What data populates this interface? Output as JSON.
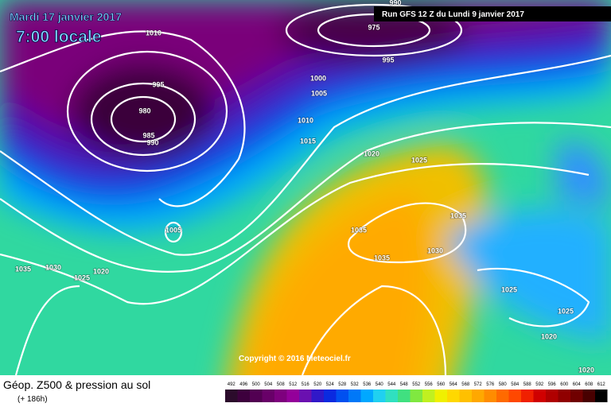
{
  "header": {
    "date": "Mardi 17 janvier 2017",
    "time": "7:00 locale",
    "run": "Run GFS 12 Z du Lundi 9 janvier 2017"
  },
  "isobar_labels": [
    "990",
    "975",
    "1010",
    "995",
    "1000",
    "1005",
    "995",
    "980",
    "985",
    "990",
    "1010",
    "1015",
    "1020",
    "1025",
    "1035",
    "1005",
    "1035",
    "1035",
    "1030",
    "1035",
    "1030",
    "1025",
    "1020",
    "1025",
    "1025",
    "1020",
    "1020"
  ],
  "copyright": "Copyright © 2016 Meteociel.fr",
  "footer": {
    "title": "Géop. Z500 & pression au sol",
    "lead": "(+ 186h)"
  },
  "scale": {
    "values": [
      492,
      496,
      500,
      504,
      508,
      512,
      516,
      520,
      524,
      528,
      532,
      536,
      540,
      544,
      548,
      552,
      556,
      560,
      564,
      568,
      572,
      576,
      580,
      584,
      588,
      592,
      596,
      600,
      604,
      608,
      612
    ],
    "colors": [
      "#2b0b2b",
      "#3d003d",
      "#520052",
      "#680068",
      "#7e007e",
      "#94009a",
      "#6a10b0",
      "#3018c8",
      "#0a2ae0",
      "#0050f0",
      "#0078f8",
      "#00a8ff",
      "#20d0f0",
      "#30e0c0",
      "#40e080",
      "#80e840",
      "#c0f020",
      "#f0f000",
      "#ffd800",
      "#ffc000",
      "#ffa800",
      "#ff8c00",
      "#ff6a00",
      "#ff4800",
      "#f02000",
      "#d00000",
      "#b00000",
      "#900000",
      "#700000",
      "#480000",
      "#000000"
    ]
  }
}
